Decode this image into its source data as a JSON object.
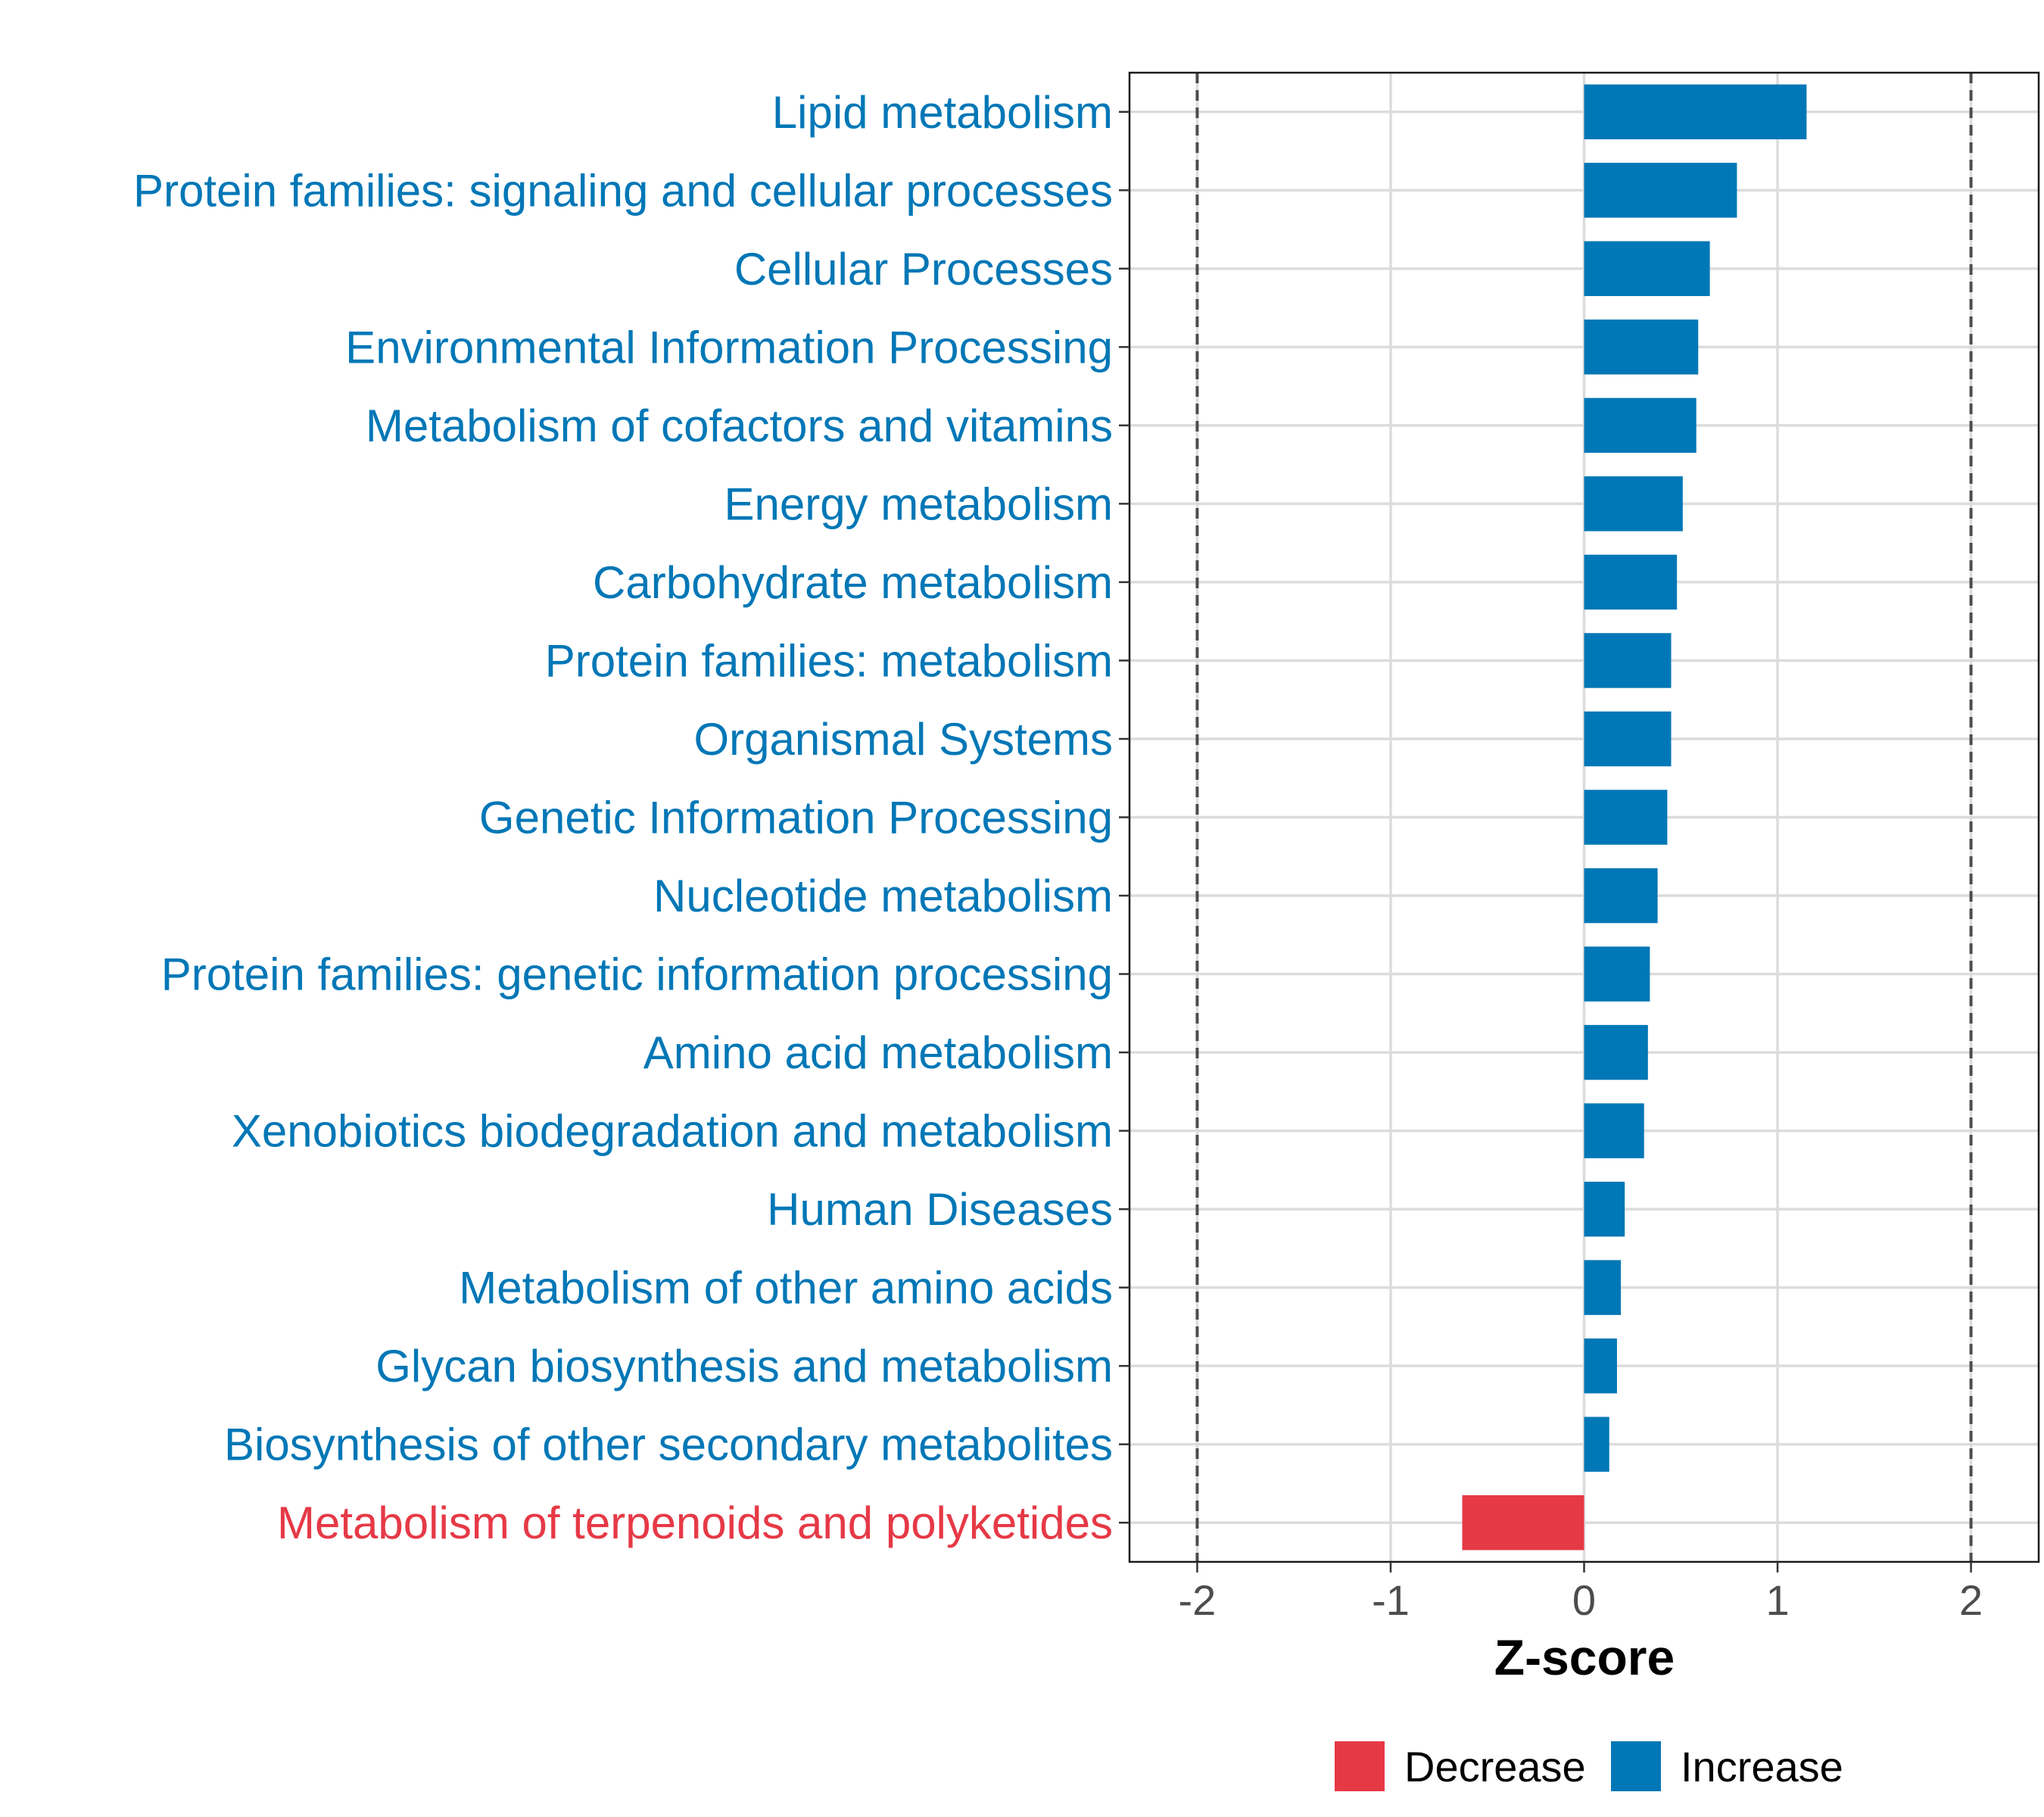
{
  "chart_data": {
    "type": "bar",
    "orientation": "horizontal",
    "xlabel": "Z-score",
    "ylabel": "",
    "xlim": [
      -2.35,
      2.35
    ],
    "x_ticks": [
      -2,
      -1,
      0,
      1,
      2
    ],
    "x_tick_labels": [
      "-2",
      "-1",
      "0",
      "1",
      "2"
    ],
    "reference_lines": [
      -2,
      2
    ],
    "grid": true,
    "legend_position": "bottom",
    "legend": [
      {
        "name": "Decrease",
        "color": "#e63946"
      },
      {
        "name": "Increase",
        "color": "#0077b6"
      }
    ],
    "categories": [
      "Lipid metabolism",
      "Protein families: signaling and cellular processes",
      "Cellular Processes",
      "Environmental Information Processing",
      "Metabolism of cofactors and vitamins",
      "Energy metabolism",
      "Carbohydrate metabolism",
      "Protein families: metabolism",
      "Organismal Systems",
      "Genetic Information Processing",
      "Nucleotide metabolism",
      "Protein families: genetic information processing",
      "Amino acid metabolism",
      "Xenobiotics biodegradation and metabolism",
      "Human Diseases",
      "Metabolism of other amino acids",
      "Glycan biosynthesis and metabolism",
      "Biosynthesis of other secondary metabolites",
      "Metabolism of terpenoids and polyketides"
    ],
    "values": [
      1.15,
      0.79,
      0.65,
      0.59,
      0.58,
      0.51,
      0.48,
      0.45,
      0.45,
      0.43,
      0.38,
      0.34,
      0.33,
      0.31,
      0.21,
      0.19,
      0.17,
      0.13,
      -0.63
    ],
    "direction": [
      "Increase",
      "Increase",
      "Increase",
      "Increase",
      "Increase",
      "Increase",
      "Increase",
      "Increase",
      "Increase",
      "Increase",
      "Increase",
      "Increase",
      "Increase",
      "Increase",
      "Increase",
      "Increase",
      "Increase",
      "Increase",
      "Decrease"
    ]
  }
}
